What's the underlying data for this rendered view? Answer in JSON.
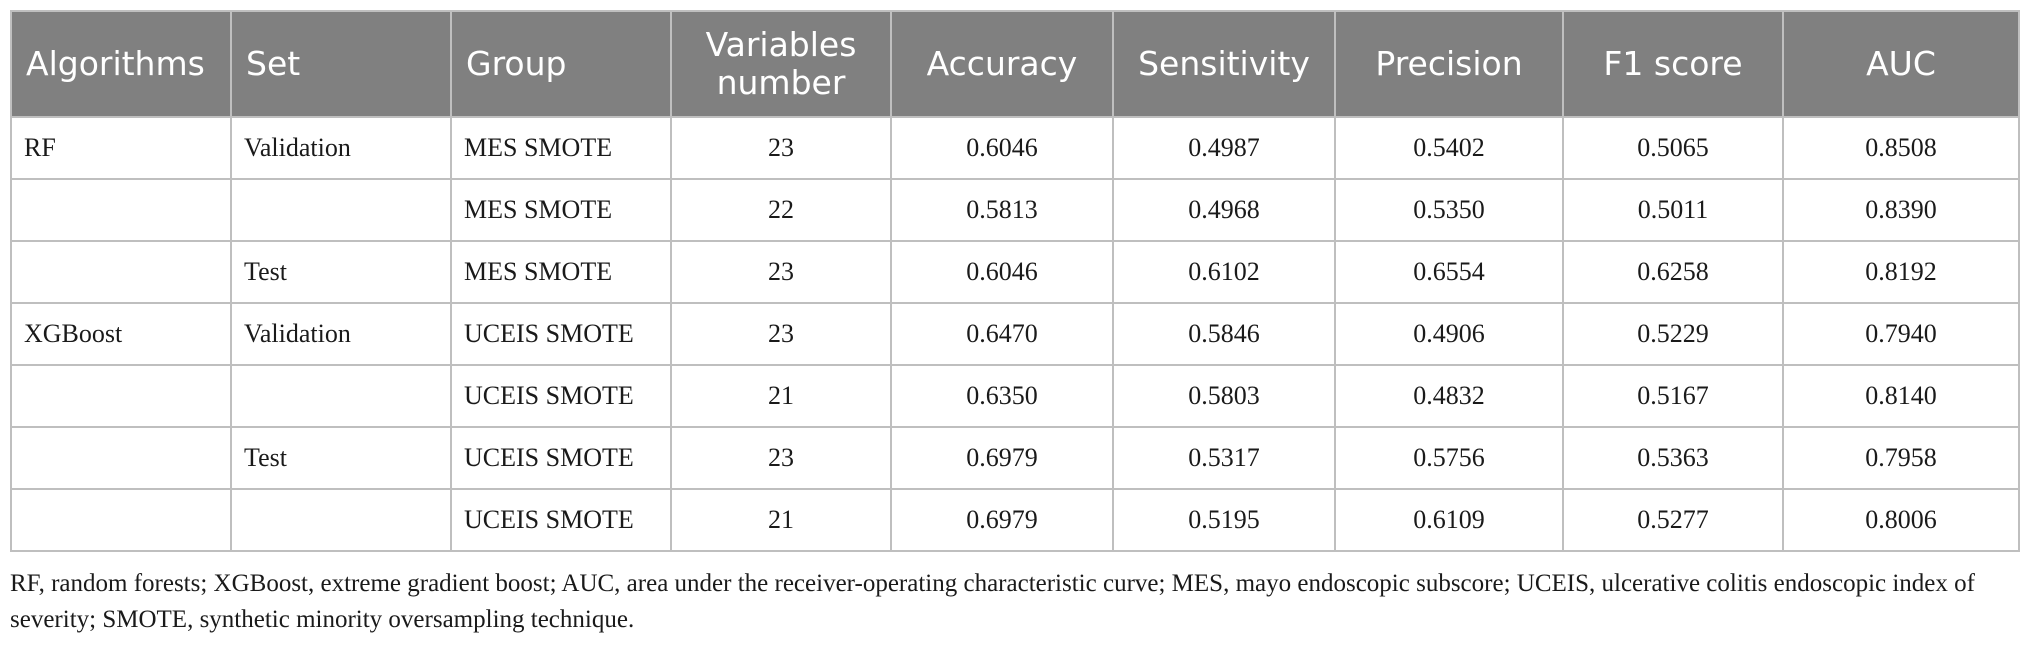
{
  "table": {
    "headers": [
      "Algorithms",
      "Set",
      "Group",
      "Variables number",
      "Accuracy",
      "Sensitivity",
      "Precision",
      "F1 score",
      "AUC"
    ],
    "rows": [
      [
        "RF",
        "Validation",
        "MES SMOTE",
        "23",
        "0.6046",
        "0.4987",
        "0.5402",
        "0.5065",
        "0.8508"
      ],
      [
        "",
        "",
        "MES SMOTE",
        "22",
        "0.5813",
        "0.4968",
        "0.5350",
        "0.5011",
        "0.8390"
      ],
      [
        "",
        "Test",
        "MES SMOTE",
        "23",
        "0.6046",
        "0.6102",
        "0.6554",
        "0.6258",
        "0.8192"
      ],
      [
        "XGBoost",
        "Validation",
        "UCEIS SMOTE",
        "23",
        "0.6470",
        "0.5846",
        "0.4906",
        "0.5229",
        "0.7940"
      ],
      [
        "",
        "",
        "UCEIS SMOTE",
        "21",
        "0.6350",
        "0.5803",
        "0.4832",
        "0.5167",
        "0.8140"
      ],
      [
        "",
        "Test",
        "UCEIS SMOTE",
        "23",
        "0.6979",
        "0.5317",
        "0.5756",
        "0.5363",
        "0.7958"
      ],
      [
        "",
        "",
        "UCEIS SMOTE",
        "21",
        "0.6979",
        "0.5195",
        "0.6109",
        "0.5277",
        "0.8006"
      ]
    ]
  },
  "footnote": "RF, random forests; XGBoost, extreme gradient boost; AUC, area under the receiver-operating characteristic curve; MES, mayo endoscopic subscore; UCEIS, ulcerative colitis endoscopic index of severity; SMOTE, synthetic minority oversampling technique.",
  "colors": {
    "header_bg": "#808080",
    "header_text": "#ffffff",
    "border": "#bfbfbf"
  }
}
